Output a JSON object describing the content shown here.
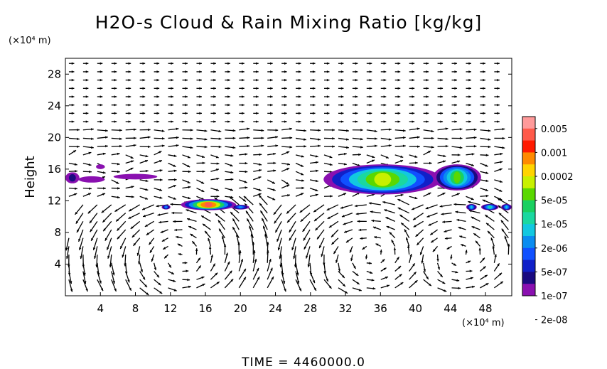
{
  "chart_data": {
    "type": "heatmap",
    "title": "H2O-s Cloud & Rain Mixing Ratio [kg/kg]",
    "ylabel": "Height",
    "yunit": "(×10⁴ m)",
    "xunit": "(×10⁴ m)",
    "xlim": [
      0,
      51
    ],
    "ylim": [
      0,
      30
    ],
    "xticks": [
      4,
      8,
      12,
      16,
      20,
      24,
      28,
      32,
      36,
      40,
      44,
      48
    ],
    "yticks": [
      4,
      8,
      12,
      16,
      20,
      24,
      28
    ],
    "grid": false,
    "overlay": "wind vectors",
    "colorbar": {
      "labels": [
        "0.005",
        "0.001",
        "0.0002",
        "5e-05",
        "1e-05",
        "2e-06",
        "5e-07",
        "1e-07",
        "2e-08"
      ],
      "colors": [
        "#ff9a9a",
        "#ff5a4a",
        "#ff1a00",
        "#ff8a00",
        "#ffd400",
        "#c8f000",
        "#5ad800",
        "#1ad060",
        "#1ad8a0",
        "#12c8e0",
        "#0a8cf0",
        "#1050ff",
        "#1020c8",
        "#1a0a80",
        "#8a10b0"
      ]
    },
    "cloud_regions": [
      {
        "x": [
          0,
          1.6
        ],
        "y": [
          14.2,
          15.6
        ],
        "max_level": 1
      },
      {
        "x": [
          1.5,
          4.5
        ],
        "y": [
          14.3,
          15.1
        ],
        "max_level": 0
      },
      {
        "x": [
          3.5,
          4.5
        ],
        "y": [
          16.0,
          16.6
        ],
        "max_level": 0
      },
      {
        "x": [
          5.5,
          10.5
        ],
        "y": [
          14.7,
          15.4
        ],
        "max_level": 0
      },
      {
        "x": [
          11,
          12
        ],
        "y": [
          10.9,
          11.5
        ],
        "max_level": 4
      },
      {
        "x": [
          13.2,
          19.5
        ],
        "y": [
          10.8,
          12.2
        ],
        "max_level": 13
      },
      {
        "x": [
          19,
          21
        ],
        "y": [
          10.9,
          11.5
        ],
        "max_level": 4
      },
      {
        "x": [
          29.5,
          43
        ],
        "y": [
          12.8,
          16.6
        ],
        "max_level": 9
      },
      {
        "x": [
          42,
          47.5
        ],
        "y": [
          13.3,
          16.6
        ],
        "max_level": 8
      },
      {
        "x": [
          45.8,
          47
        ],
        "y": [
          10.8,
          11.6
        ],
        "max_level": 5
      },
      {
        "x": [
          47.5,
          49.5
        ],
        "y": [
          10.8,
          11.6
        ],
        "max_level": 6
      },
      {
        "x": [
          49.8,
          51
        ],
        "y": [
          10.8,
          11.6
        ],
        "max_level": 5
      }
    ]
  },
  "footer": {
    "time_label": "TIME = 4460000.0"
  }
}
